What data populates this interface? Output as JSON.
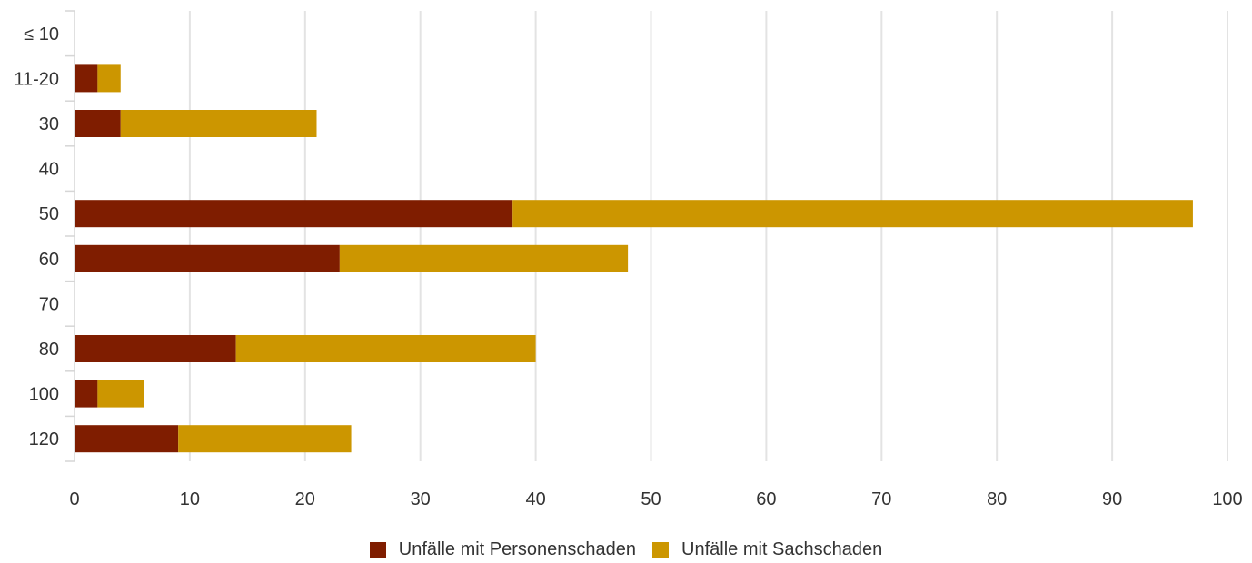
{
  "chart_data": {
    "type": "bar",
    "orientation": "horizontal",
    "stacked": true,
    "categories": [
      "≤ 10",
      "11-20",
      "30",
      "40",
      "50",
      "60",
      "70",
      "80",
      "100",
      "120"
    ],
    "series": [
      {
        "name": "Unfälle mit Personenschaden",
        "color": "#7f1d00",
        "values": [
          0,
          2,
          4,
          0,
          38,
          23,
          0,
          14,
          2,
          9
        ]
      },
      {
        "name": "Unfälle mit Sachschaden",
        "color": "#cc9600",
        "values": [
          0,
          2,
          17,
          0,
          59,
          25,
          0,
          26,
          4,
          15
        ]
      }
    ],
    "xlim": [
      0,
      100
    ],
    "xticks": [
      "0",
      "10",
      "20",
      "30",
      "40",
      "50",
      "60",
      "70",
      "80",
      "90",
      "100"
    ],
    "grid": true,
    "legend_position": "bottom"
  }
}
